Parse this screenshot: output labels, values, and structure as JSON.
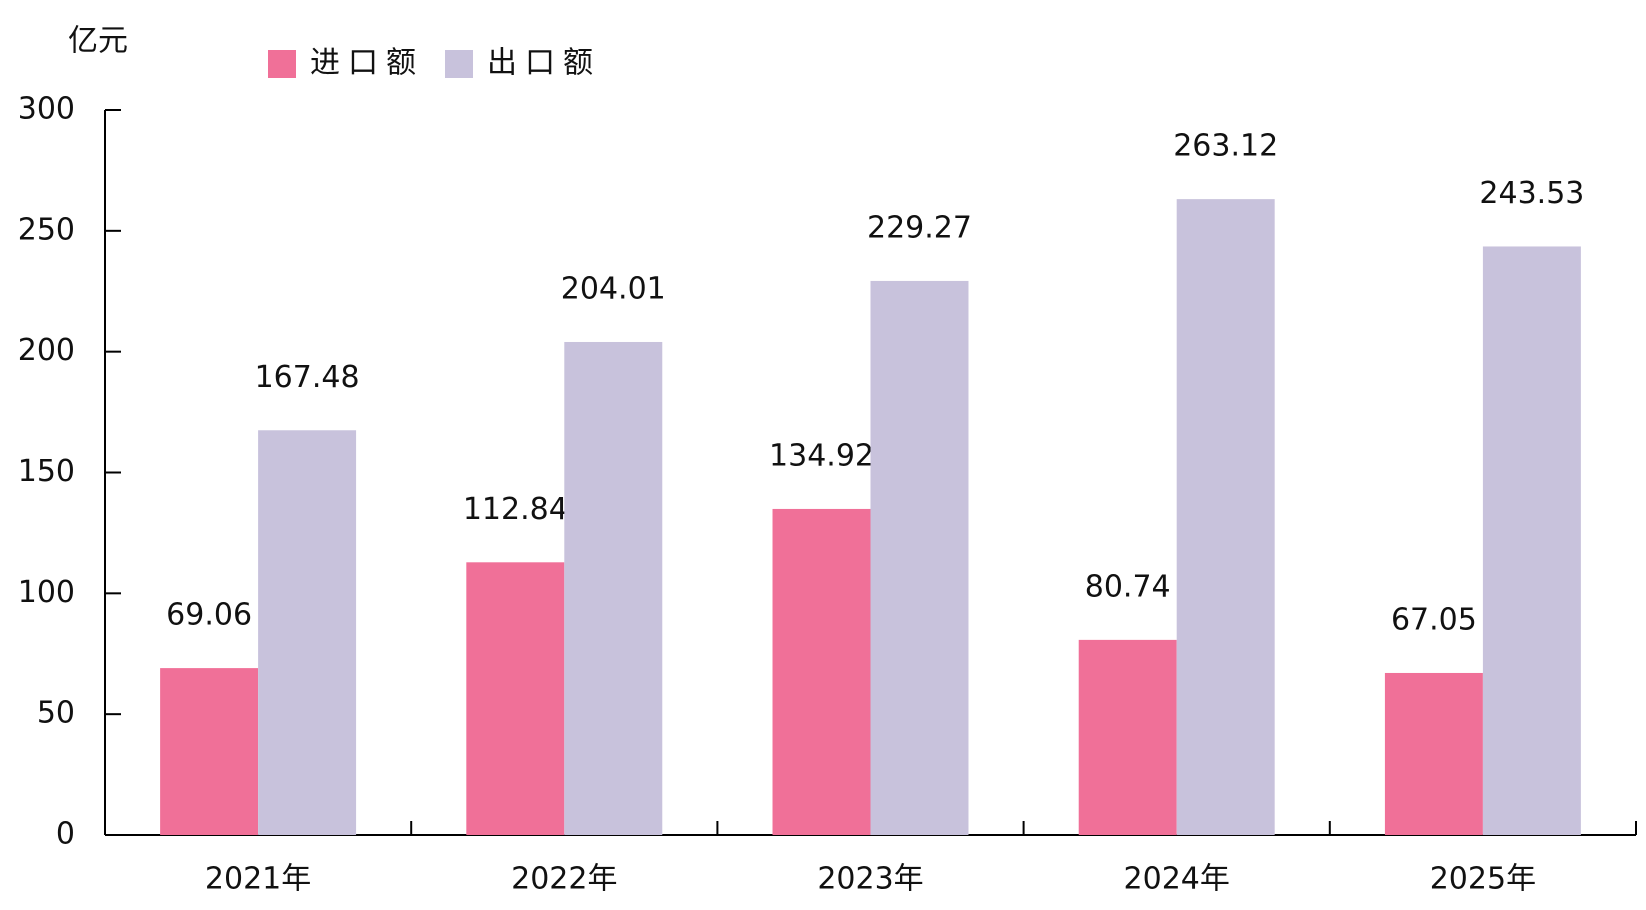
{
  "chart_data": {
    "type": "bar",
    "y_unit": "亿元",
    "categories": [
      "2021年",
      "2022年",
      "2023年",
      "2024年",
      "2025年"
    ],
    "series": [
      {
        "name": "进口额",
        "color": "#f07098",
        "values": [
          69.06,
          112.84,
          134.92,
          80.74,
          67.05
        ]
      },
      {
        "name": "出口额",
        "color": "#c8c2dc",
        "values": [
          167.48,
          204.01,
          229.27,
          263.12,
          243.53
        ]
      }
    ],
    "ylim": [
      0,
      300
    ],
    "yticks": [
      0,
      50,
      100,
      150,
      200,
      250,
      300
    ]
  }
}
